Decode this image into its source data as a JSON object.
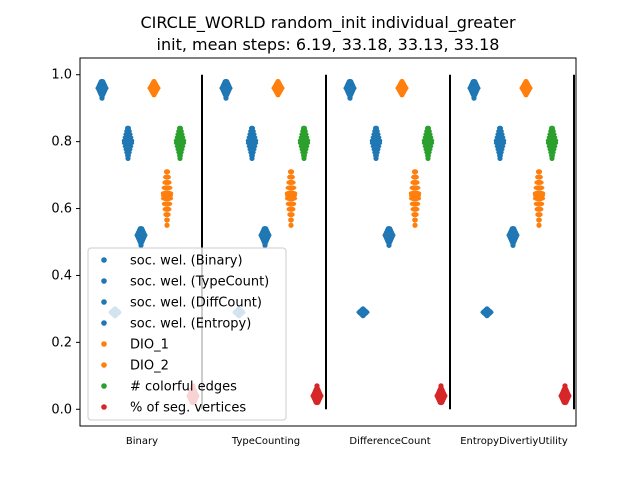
{
  "chart_data": {
    "type": "scatter",
    "title_line1": "CIRCLE_WORLD random_init individual_greater",
    "title_line2": "init, mean steps: 6.19, 33.18, 33.13, 33.18",
    "xlabel": "",
    "ylabel": "",
    "ylim": [
      -0.05,
      1.05
    ],
    "yticks": [
      "0.0",
      "0.2",
      "0.4",
      "0.6",
      "0.8",
      "1.0"
    ],
    "grid": false,
    "legend_placement": "lower-left",
    "groups": [
      "Binary",
      "TypeCounting",
      "DifferenceCount",
      "EntropyDivertiyUtility"
    ],
    "series": [
      {
        "name": "soc. wel. (Binary)",
        "color": "#1f77b4",
        "slot": 0,
        "values": [
          0.96,
          0.96,
          0.96,
          0.96
        ],
        "spread": [
          0.93,
          0.98
        ]
      },
      {
        "name": "soc. wel. (TypeCount)",
        "color": "#1f77b4",
        "slot": 1,
        "values": [
          0.8,
          0.8,
          0.8,
          0.8
        ],
        "spread": [
          0.75,
          0.84
        ]
      },
      {
        "name": "soc. wel. (DiffCount)",
        "color": "#1f77b4",
        "slot": 2,
        "values": [
          0.52,
          0.52,
          0.52,
          0.52
        ],
        "spread": [
          0.49,
          0.54
        ]
      },
      {
        "name": "soc. wel. (Entropy)",
        "color": "#1f77b4",
        "slot": 3,
        "values": [
          0.29,
          0.29,
          0.29,
          0.29
        ],
        "spread": [
          0.28,
          0.3
        ]
      },
      {
        "name": "DIO_1",
        "color": "#ff7f0e",
        "slot": 4,
        "values": [
          0.96,
          0.96,
          0.96,
          0.96
        ],
        "spread": [
          0.94,
          0.98
        ]
      },
      {
        "name": "DIO_2",
        "color": "#ff7f0e",
        "slot": 5,
        "values": [
          0.64,
          0.64,
          0.64,
          0.64
        ],
        "spread": [
          0.55,
          0.71
        ]
      },
      {
        "name": "# colorful edges",
        "color": "#2ca02c",
        "slot": 6,
        "values": [
          0.8,
          0.8,
          0.8,
          0.8
        ],
        "spread": [
          0.75,
          0.84
        ]
      },
      {
        "name": "% of seg. vertices",
        "color": "#d62728",
        "slot": 7,
        "values": [
          0.04,
          0.04,
          0.04,
          0.04
        ],
        "spread": [
          0.02,
          0.07
        ]
      }
    ]
  }
}
